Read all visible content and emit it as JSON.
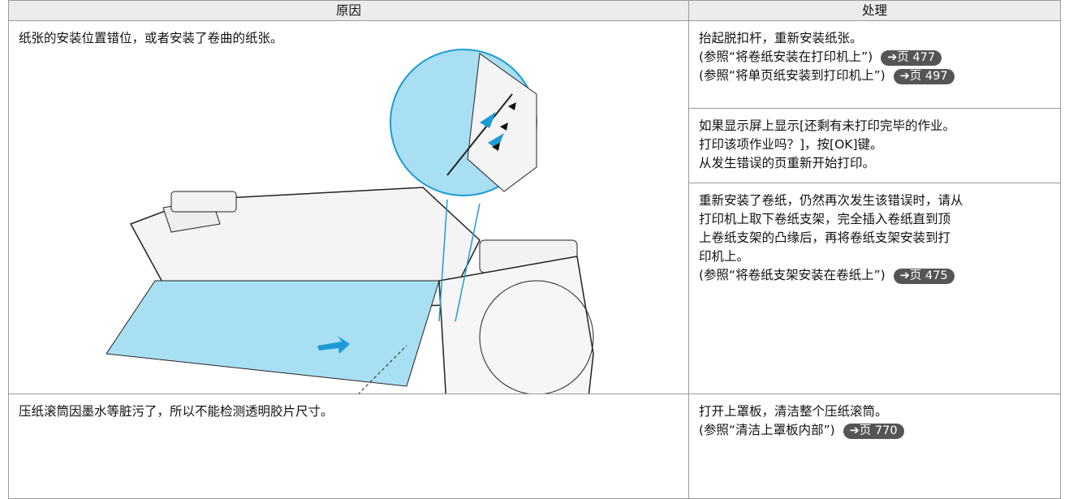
{
  "table": {
    "headers": [
      "原因",
      "处理"
    ],
    "rows": [
      {
        "cause": "纸张的安装位置错位，或者安装了卷曲的纸张。",
        "actions": [
          {
            "lines": [
              "抬起脱扣杆，重新安装纸张。"
            ],
            "refs": [
              {
                "text": "(参照“将卷纸安装在打印机上”)",
                "link": "➔页 477"
              },
              {
                "text": "(参照“将单页纸安装到打印机上”)",
                "link": "➔页 497"
              }
            ]
          },
          {
            "lines": [
              "如果显示屏上显示[还剩有未打印完毕的作业。",
              "打印该项作业吗？]，按[OK]键。",
              "从发生错误的页重新开始打印。"
            ],
            "refs": []
          },
          {
            "lines": [
              "重新安装了卷纸，仍然再次发生该错误时，请从",
              "打印机上取下卷纸支架，完全插入卷纸直到顶",
              "上卷纸支架的凸缘后，再将卷纸支架安装到打",
              "印机上。"
            ],
            "refs": [
              {
                "text": "(参照“将卷纸支架安装在卷纸上”)",
                "link": "➔页 475"
              }
            ]
          }
        ]
      },
      {
        "cause": "压纸滚筒因墨水等脏污了，所以不能检测透明胶片尺寸。",
        "actions": [
          {
            "lines": [
              "打开上罩板，清洁整个压纸滚筒。"
            ],
            "refs": [
              {
                "text": "(参照“清洁上罩板内部”)",
                "link": "➔页 770"
              }
            ]
          }
        ]
      }
    ]
  }
}
